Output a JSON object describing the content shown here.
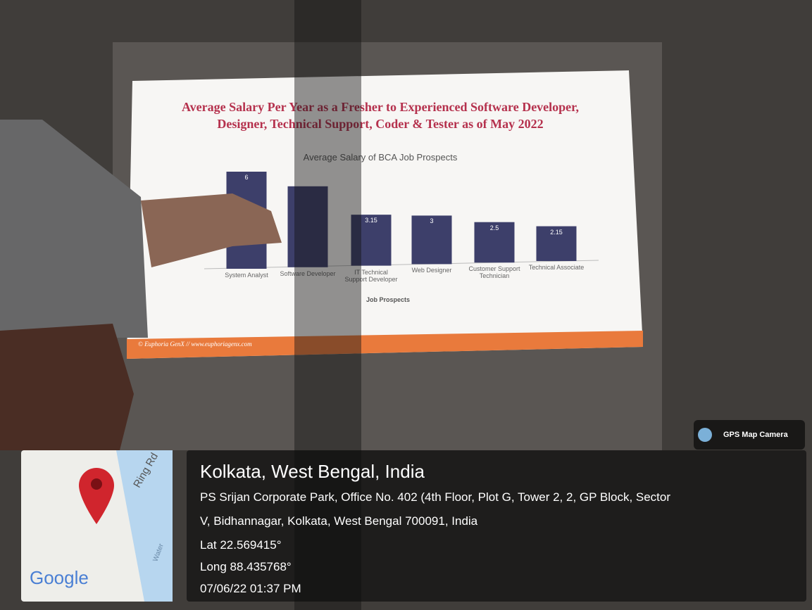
{
  "slide": {
    "title_lines": [
      "Average Salary Per Year as a Fresher to Experienced Software Developer,",
      "Designer, Technical Support, Coder & Tester as of May 2022"
    ],
    "footer": "© Euphoria GenX // www.euphoriagenx.com"
  },
  "chart_data": {
    "type": "bar",
    "title": "Average Salary of BCA Job Prospects",
    "x_label": "Job Prospects",
    "categories": [
      "System Analyst",
      "Software Developer",
      "IT Technical Support Developer",
      "Web Designer",
      "Customer Support Technician",
      "Technical Associate"
    ],
    "values": [
      6,
      5,
      3.15,
      3,
      2.5,
      2.15
    ],
    "value_labels": [
      "6",
      null,
      "3.15",
      "3",
      "2.5",
      "2.15"
    ],
    "color": "#3d3f6a"
  },
  "overlay": {
    "app": "GPS Map Camera",
    "map_labels": [
      "Ring Rd",
      "Water"
    ],
    "map_brand": "Google",
    "place": "Kolkata, West Bengal, India",
    "address_lines": [
      "PS Srijan Corporate Park, Office No. 402 (4th Floor, Plot G, Tower 2, 2, GP Block, Sector",
      "V, Bidhannagar, Kolkata, West Bengal 700091, India"
    ],
    "lat": "Lat 22.569415°",
    "long": "Long 88.435768°",
    "datetime": "07/06/22 01:37 PM"
  }
}
